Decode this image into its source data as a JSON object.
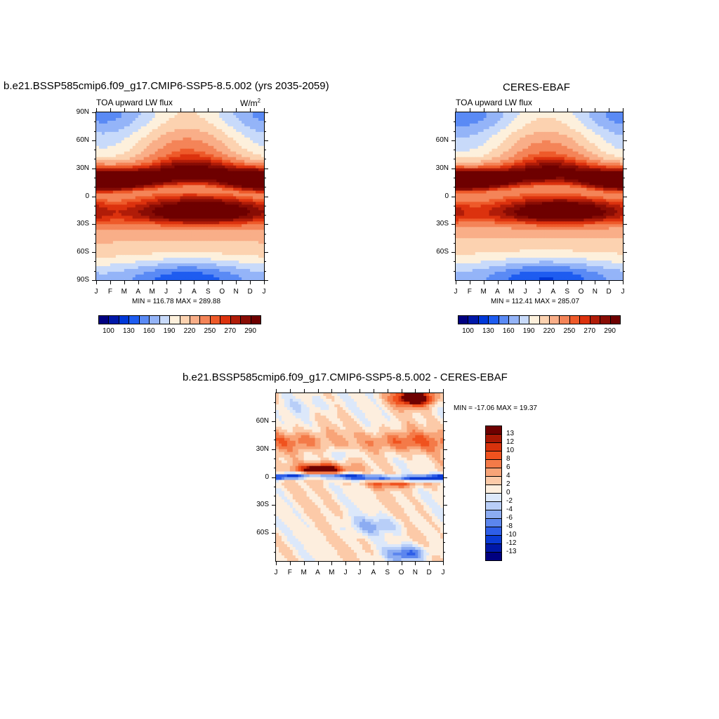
{
  "panels": [
    {
      "title": "b.e21.BSSP585cmip6.f09_g17.CMIP6-SSP5-8.5.002 (yrs 2035-2059)",
      "left_label": "TOA upward LW flux",
      "units": "W/m",
      "units_sup": "2",
      "minmax": "MIN = 116.78 MAX = 289.88"
    },
    {
      "title": "CERES-EBAF",
      "left_label": "TOA upward LW flux",
      "minmax": "MIN = 112.41 MAX = 285.07"
    },
    {
      "title": "b.e21.BSSP585cmip6.f09_g17.CMIP6-SSP5-8.5.002 - CERES-EBAF",
      "minmax": "MIN = -17.06 MAX =  19.37"
    }
  ],
  "axes": {
    "months": [
      "J",
      "F",
      "M",
      "A",
      "M",
      "J",
      "J",
      "A",
      "S",
      "O",
      "N",
      "D",
      "J"
    ],
    "lat_labels_full": [
      "90N",
      "60N",
      "30N",
      "0",
      "30S",
      "60S",
      "90S"
    ],
    "lat_labels_short": [
      "60N",
      "30N",
      "0",
      "30S",
      "60S"
    ]
  },
  "colorbar_abs": {
    "colors": [
      "#000080",
      "#0018a8",
      "#0038d8",
      "#1e5cf0",
      "#5a8af5",
      "#94b4f8",
      "#c8dafa",
      "#fdf0dc",
      "#fcd2b0",
      "#f9ae88",
      "#f48458",
      "#ee5a2a",
      "#dc320e",
      "#b01c08",
      "#880c04",
      "#6e0000"
    ],
    "labels": [
      "100",
      "130",
      "160",
      "190",
      "220",
      "250",
      "270",
      "290"
    ]
  },
  "colorbar_diff": {
    "colors": [
      "#6e0000",
      "#a81804",
      "#d8320c",
      "#f0521e",
      "#f47a48",
      "#f8a478",
      "#fccaa8",
      "#fdeede",
      "#dce8fa",
      "#b8cef8",
      "#8cacf2",
      "#5c86ee",
      "#2e5ee8",
      "#0a3ad4",
      "#0018a8",
      "#000080"
    ],
    "labels": [
      "13",
      "12",
      "10",
      "8",
      "6",
      "4",
      "2",
      "0",
      "-2",
      "-4",
      "-6",
      "-8",
      "-10",
      "-12",
      "-13"
    ]
  },
  "chart_data": [
    {
      "type": "heatmap",
      "title": "b.e21.BSSP585cmip6.f09_g17.CMIP6-SSP5-8.5.002 (yrs 2035-2059)",
      "subtitle": "TOA upward LW flux",
      "units": "W/m^2",
      "x": [
        "J",
        "F",
        "M",
        "A",
        "M",
        "J",
        "J",
        "A",
        "S",
        "O",
        "N",
        "D",
        "J"
      ],
      "y": [
        -90,
        -60,
        -30,
        0,
        30,
        60,
        90
      ],
      "levels": [
        100,
        130,
        160,
        190,
        220,
        250,
        270,
        290
      ],
      "min": 116.78,
      "max": 289.88,
      "features": [
        {
          "lat": 15,
          "month": 2,
          "value": 285
        },
        {
          "lat": -15,
          "month": 7.5,
          "value": 289
        },
        {
          "lat": -80,
          "month": 7,
          "value": 118
        },
        {
          "lat": 85,
          "month": 7,
          "value": 230
        }
      ]
    },
    {
      "type": "heatmap",
      "title": "CERES-EBAF",
      "subtitle": "TOA upward LW flux",
      "x": [
        "J",
        "F",
        "M",
        "A",
        "M",
        "J",
        "J",
        "A",
        "S",
        "O",
        "N",
        "D",
        "J"
      ],
      "y": [
        -60,
        -30,
        0,
        30,
        60
      ],
      "levels": [
        100,
        130,
        160,
        190,
        220,
        250,
        270,
        290
      ],
      "min": 112.41,
      "max": 285.07,
      "features": [
        {
          "lat": 15,
          "month": 1,
          "value": 282
        },
        {
          "lat": -15,
          "month": 7.5,
          "value": 280
        },
        {
          "lat": -80,
          "month": 7,
          "value": 114
        }
      ]
    },
    {
      "type": "heatmap",
      "title": "b.e21.BSSP585cmip6.f09_g17.CMIP6-SSP5-8.5.002 - CERES-EBAF",
      "x": [
        "J",
        "F",
        "M",
        "A",
        "M",
        "J",
        "J",
        "A",
        "S",
        "O",
        "N",
        "D",
        "J"
      ],
      "y": [
        -60,
        -30,
        0,
        30,
        60
      ],
      "levels": [
        -13,
        -12,
        -10,
        -8,
        -6,
        -4,
        -2,
        0,
        2,
        4,
        6,
        8,
        10,
        12,
        13
      ],
      "min": -17.06,
      "max": 19.37,
      "features": [
        {
          "lat": 7,
          "month": 3.3,
          "value": 17
        },
        {
          "lat": 0,
          "month": 1,
          "value": -14
        },
        {
          "lat": -5,
          "month": 8.5,
          "value": 10
        },
        {
          "lat": 86,
          "month": 10,
          "value": 19
        }
      ]
    }
  ]
}
